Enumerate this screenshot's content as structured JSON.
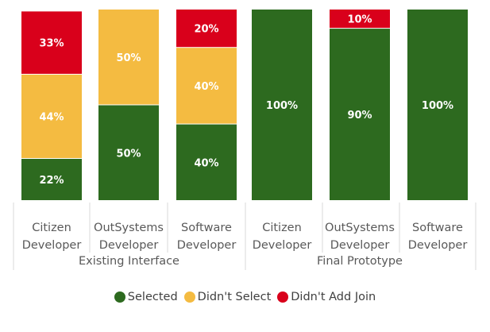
{
  "chart_data": {
    "type": "bar",
    "stacked": true,
    "percent": true,
    "groups": [
      {
        "label": "Existing Interface",
        "categories": [
          [
            "Citizen",
            "Developer"
          ],
          [
            "OutSystems",
            "Developer"
          ],
          [
            "Software",
            "Developer"
          ]
        ]
      },
      {
        "label": "Final Prototype",
        "categories": [
          [
            "Citizen",
            "Developer"
          ],
          [
            "OutSystems",
            "Developer"
          ],
          [
            "Software",
            "Developer"
          ]
        ]
      }
    ],
    "series": [
      {
        "name": "Selected",
        "color": "#2d6a1f",
        "values": [
          22,
          50,
          40,
          100,
          90,
          100
        ],
        "labels": [
          "22%",
          "50%",
          "40%",
          "100%",
          "90%",
          "100%"
        ]
      },
      {
        "name": "Didn't Select",
        "color": "#f4bb41",
        "values": [
          44,
          50,
          40,
          0,
          0,
          0
        ],
        "labels": [
          "44%",
          "50%",
          "40%",
          "",
          "",
          ""
        ]
      },
      {
        "name": "Didn't Add Join",
        "color": "#d9001b",
        "values": [
          33,
          0,
          20,
          0,
          10,
          0
        ],
        "labels": [
          "33%",
          "",
          "20%",
          "",
          "10%",
          ""
        ]
      }
    ],
    "ylim": [
      0,
      100
    ],
    "grid": false,
    "legend_position": "bottom"
  }
}
